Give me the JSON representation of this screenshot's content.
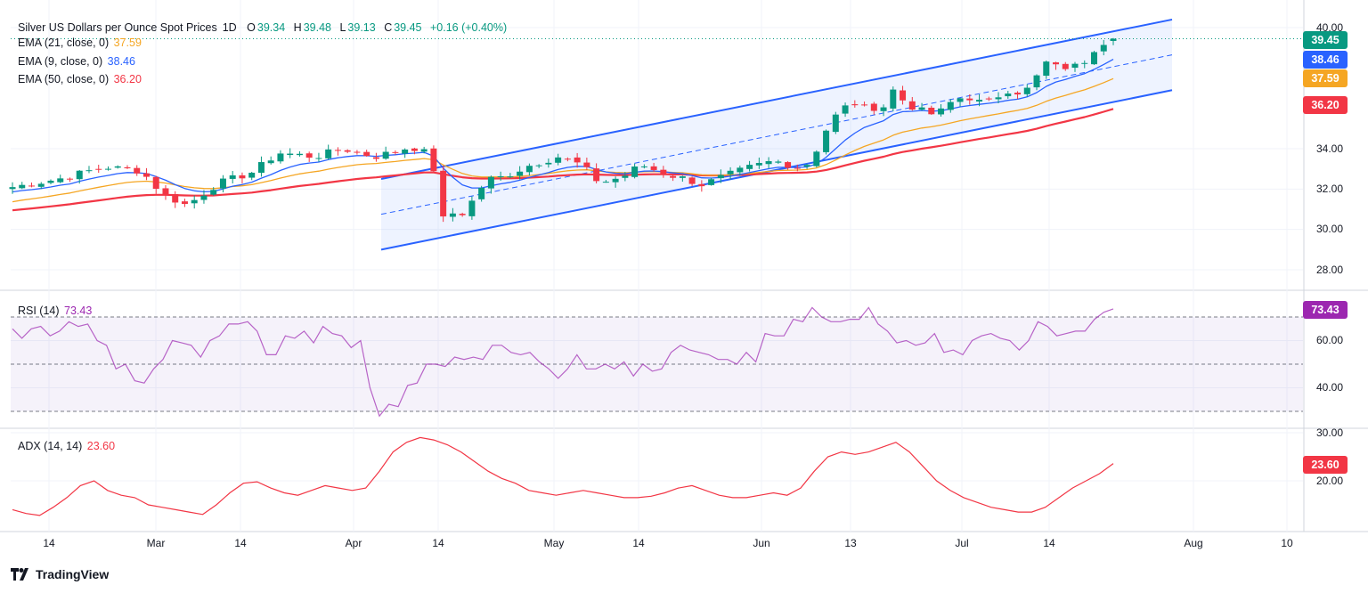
{
  "title": "Silver US Dollars per Ounce Spot Prices",
  "interval": "1D",
  "ohlc": {
    "o_label": "O",
    "o": "39.34",
    "h_label": "H",
    "h": "39.48",
    "l_label": "L",
    "l": "39.13",
    "c_label": "C",
    "c": "39.45",
    "change": "+0.16 (+0.40%)"
  },
  "indicators": {
    "ema21": {
      "label": "EMA (21, close, 0)",
      "value": "37.59",
      "color": "#f5a623"
    },
    "ema9": {
      "label": "EMA (9, close, 0)",
      "value": "38.46",
      "color": "#2962ff"
    },
    "ema50": {
      "label": "EMA (50, close, 0)",
      "value": "36.20",
      "color": "#f23645"
    },
    "rsi": {
      "label": "RSI (14)",
      "value": "73.43",
      "color": "#9c27b0"
    },
    "adx": {
      "label": "ADX (14, 14)",
      "value": "23.60",
      "color": "#f23645"
    }
  },
  "price_badge": {
    "value": "39.45",
    "color": "#089981"
  },
  "brand": "TradingView",
  "chart_data": [
    {
      "type": "candlestick",
      "title": "Silver US Dollars per Ounce Spot Prices, 1D",
      "ylim": [
        27,
        40.5
      ],
      "y_ticks": [
        "40.00",
        "34.00",
        "32.00",
        "30.00",
        "28.00"
      ],
      "x_ticks": [
        "14",
        "Mar",
        "14",
        "Apr",
        "14",
        "May",
        "14",
        "Jun",
        "13",
        "Jul",
        "14",
        "Aug",
        "10"
      ],
      "last": {
        "open": 39.34,
        "high": 39.48,
        "low": 39.13,
        "close": 39.45
      },
      "series": [
        {
          "name": "EMA (21, close, 0)",
          "last": 37.59
        },
        {
          "name": "EMA (9, close, 0)",
          "last": 38.46
        },
        {
          "name": "EMA (50, close, 0)",
          "last": 36.2
        }
      ],
      "channel": {
        "lower_start": 29.0,
        "lower_end": 36.9,
        "upper_start": 32.5,
        "upper_end": 40.4
      }
    },
    {
      "type": "line",
      "title": "RSI (14)",
      "ylim": [
        25,
        80
      ],
      "y_ticks": [
        "60.00",
        "40.00"
      ],
      "levels": [
        70,
        50,
        30
      ],
      "series": [
        {
          "name": "RSI (14)",
          "values": [
            65,
            61,
            65,
            66,
            62,
            64,
            68,
            66,
            67,
            60,
            58,
            48,
            50,
            43,
            42,
            48,
            52,
            60,
            59,
            58,
            53,
            60,
            62,
            67,
            67,
            68,
            64,
            54,
            54,
            62,
            61,
            64,
            59,
            66,
            63,
            62,
            57,
            60,
            40,
            28,
            33,
            32,
            41,
            42,
            50,
            50,
            49,
            53,
            52,
            53,
            52,
            58,
            58,
            55,
            54,
            55,
            51,
            48,
            44,
            48,
            54,
            48,
            48,
            50,
            48,
            51,
            45,
            50,
            47,
            48,
            55,
            58,
            56,
            55,
            54,
            52,
            52,
            50,
            55,
            51,
            63,
            62,
            62,
            69,
            68,
            74,
            70,
            68,
            68,
            69,
            69,
            74,
            67,
            64,
            59,
            60,
            58,
            59,
            63,
            55,
            56,
            54,
            60,
            62,
            63,
            61,
            60,
            56,
            60,
            68,
            66,
            62,
            63,
            64,
            64,
            69,
            72,
            73.43
          ]
        }
      ]
    },
    {
      "type": "line",
      "title": "ADX (14, 14)",
      "ylim": [
        10,
        32
      ],
      "y_ticks": [
        "30.00",
        "20.00"
      ],
      "series": [
        {
          "name": "ADX (14, 14)",
          "values": [
            14.0,
            13.2,
            12.8,
            14.5,
            16.5,
            19.0,
            20.0,
            18.0,
            17.0,
            16.5,
            15.0,
            14.5,
            14.0,
            13.5,
            13.0,
            15.0,
            17.5,
            19.5,
            19.8,
            18.5,
            17.5,
            17.0,
            18.0,
            19.0,
            18.5,
            18.0,
            18.5,
            22.0,
            26.0,
            28.0,
            29.0,
            28.5,
            27.5,
            26.0,
            24.0,
            22.0,
            20.5,
            19.5,
            18.0,
            17.5,
            17.0,
            17.5,
            18.0,
            17.5,
            17.0,
            16.5,
            16.5,
            16.8,
            17.5,
            18.5,
            19.0,
            18.0,
            17.0,
            16.5,
            16.5,
            17.0,
            17.5,
            17.0,
            18.5,
            22.0,
            25.0,
            26.0,
            25.5,
            26.0,
            27.0,
            28.0,
            26.0,
            23.0,
            20.0,
            18.0,
            16.5,
            15.5,
            14.5,
            14.0,
            13.5,
            13.5,
            14.5,
            16.5,
            18.5,
            20.0,
            21.5,
            23.6
          ]
        }
      ]
    }
  ]
}
